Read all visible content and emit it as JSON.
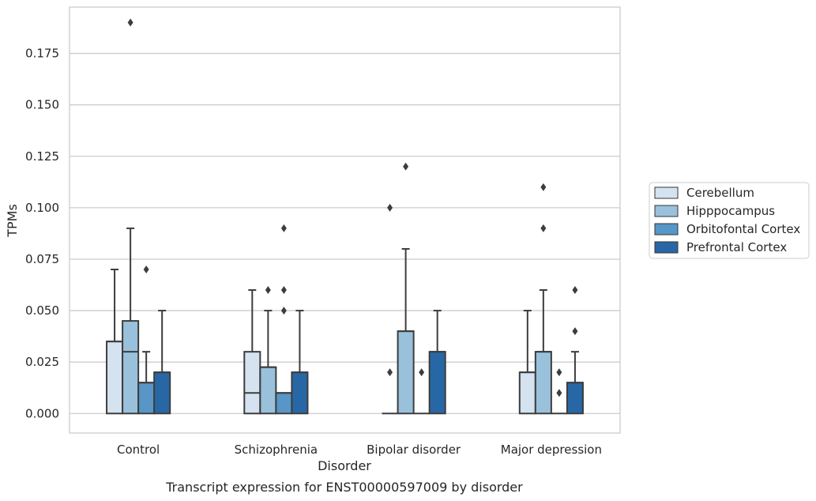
{
  "chart_data": {
    "type": "box",
    "title": "",
    "caption": "Transcript expression for ENST00000597009 by disorder",
    "xlabel": "Disorder",
    "ylabel": "TPMs",
    "ylim": [
      -0.0095,
      0.1975
    ],
    "yticks": [
      "0.000",
      "0.025",
      "0.050",
      "0.075",
      "0.100",
      "0.125",
      "0.150",
      "0.175"
    ],
    "ytick_values": [
      0,
      0.025,
      0.05,
      0.075,
      0.1,
      0.125,
      0.15,
      0.175
    ],
    "grid": "horizontal",
    "legend_position": "right",
    "categories": [
      "Control",
      "Schizophrenia",
      "Bipolar disorder",
      "Major depression"
    ],
    "series": [
      {
        "name": "Cerebellum",
        "color": "#d5e3f0",
        "boxes": [
          {
            "q1": 0,
            "median": 0.035,
            "q3": 0.035,
            "whisker_low": 0,
            "whisker_high": 0.07,
            "outliers": []
          },
          {
            "q1": 0,
            "median": 0.01,
            "q3": 0.03,
            "whisker_low": 0,
            "whisker_high": 0.06,
            "outliers": []
          },
          {
            "q1": 0,
            "median": 0,
            "q3": 0,
            "whisker_low": 0,
            "whisker_high": 0,
            "outliers": [
              0.02,
              0.1
            ]
          },
          {
            "q1": 0,
            "median": 0.02,
            "q3": 0.02,
            "whisker_low": 0,
            "whisker_high": 0.05,
            "outliers": []
          }
        ]
      },
      {
        "name": "Hipppocampus",
        "color": "#9ac1dc",
        "boxes": [
          {
            "q1": 0,
            "median": 0.03,
            "q3": 0.045,
            "whisker_low": 0,
            "whisker_high": 0.09,
            "outliers": [
              0.19
            ]
          },
          {
            "q1": 0,
            "median": 0.0225,
            "q3": 0.0225,
            "whisker_low": 0,
            "whisker_high": 0.05,
            "outliers": [
              0.06
            ]
          },
          {
            "q1": 0,
            "median": 0.04,
            "q3": 0.04,
            "whisker_low": 0,
            "whisker_high": 0.08,
            "outliers": [
              0.12
            ]
          },
          {
            "q1": 0,
            "median": 0.03,
            "q3": 0.03,
            "whisker_low": 0,
            "whisker_high": 0.06,
            "outliers": [
              0.09,
              0.11
            ]
          }
        ]
      },
      {
        "name": "Orbitofontal Cortex",
        "color": "#5796c6",
        "boxes": [
          {
            "q1": 0,
            "median": 0.015,
            "q3": 0.015,
            "whisker_low": 0,
            "whisker_high": 0.03,
            "outliers": [
              0.07
            ]
          },
          {
            "q1": 0,
            "median": 0.01,
            "q3": 0.01,
            "whisker_low": 0,
            "whisker_high": 0.01,
            "outliers": [
              0.05,
              0.06,
              0.09
            ]
          },
          {
            "q1": 0,
            "median": 0,
            "q3": 0,
            "whisker_low": 0,
            "whisker_high": 0,
            "outliers": [
              0.02
            ]
          },
          {
            "q1": 0,
            "median": 0,
            "q3": 0,
            "whisker_low": 0,
            "whisker_high": 0,
            "outliers": [
              0.01,
              0.02
            ]
          }
        ]
      },
      {
        "name": "Prefrontal Cortex",
        "color": "#2867a5",
        "boxes": [
          {
            "q1": 0,
            "median": 0.02,
            "q3": 0.02,
            "whisker_low": 0,
            "whisker_high": 0.05,
            "outliers": []
          },
          {
            "q1": 0,
            "median": 0.02,
            "q3": 0.02,
            "whisker_low": 0,
            "whisker_high": 0.05,
            "outliers": []
          },
          {
            "q1": 0,
            "median": 0.03,
            "q3": 0.03,
            "whisker_low": 0,
            "whisker_high": 0.05,
            "outliers": []
          },
          {
            "q1": 0,
            "median": 0.015,
            "q3": 0.015,
            "whisker_low": 0,
            "whisker_high": 0.03,
            "outliers": [
              0.04,
              0.06
            ]
          }
        ]
      }
    ],
    "colors": {
      "grid": "#cccccc",
      "frame": "#cccccc",
      "line": "#3d3d3d",
      "background": "#ffffff"
    }
  }
}
